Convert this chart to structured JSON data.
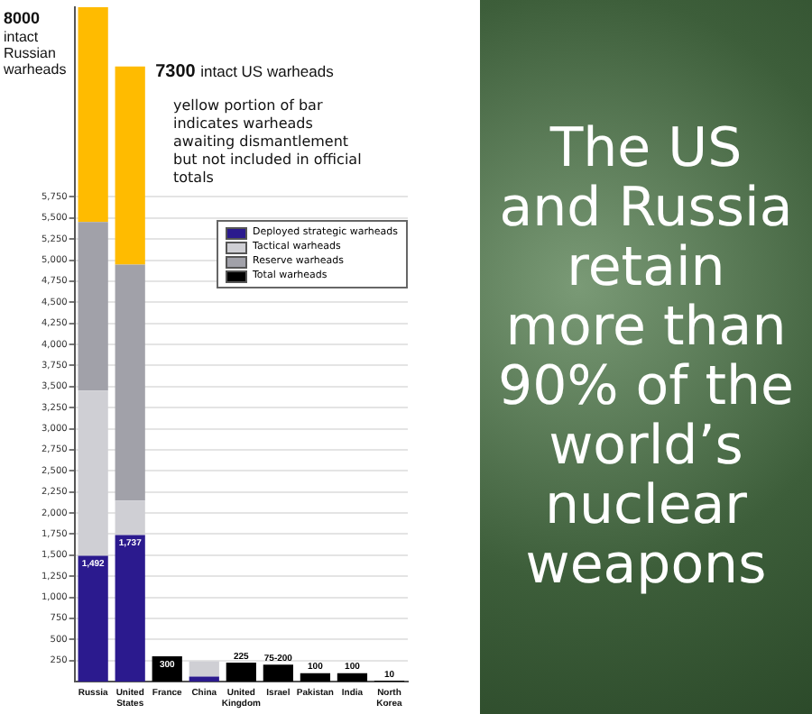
{
  "chart_data": {
    "type": "bar",
    "stacked": true,
    "categories": [
      "Russia",
      "United States",
      "France",
      "China",
      "United Kingdom",
      "Israel",
      "Pakistan",
      "India",
      "North Korea"
    ],
    "series": [
      {
        "name": "Deployed strategic warheads",
        "color": "#2b1a8e",
        "values": [
          1492,
          1737,
          null,
          60,
          null,
          null,
          null,
          null,
          null
        ],
        "value_labels": [
          "1,492",
          "1,737",
          null,
          null,
          null,
          null,
          null,
          null,
          null
        ]
      },
      {
        "name": "Tactical warheads",
        "color": "#cfcfd4",
        "values": [
          1960,
          410,
          null,
          180,
          null,
          null,
          null,
          null,
          null
        ]
      },
      {
        "name": "Reserve warheads",
        "color": "#a1a1a9",
        "values": [
          2000,
          2800,
          null,
          null,
          null,
          null,
          null,
          null,
          null
        ]
      },
      {
        "name": "Total warheads",
        "color": "#000000",
        "values": [
          null,
          null,
          300,
          null,
          225,
          200,
          100,
          100,
          10
        ],
        "value_labels": [
          null,
          null,
          "300",
          null,
          "225",
          "75-200",
          "100",
          "100",
          "10"
        ]
      },
      {
        "color": "#ffbb00",
        "values": [
          2550,
          2350,
          null,
          null,
          null,
          null,
          null,
          null,
          null
        ]
      }
    ],
    "ylim": [
      0,
      8000
    ],
    "yticks": [
      250,
      500,
      750,
      {
        "value": 1000,
        "label": "1,000"
      },
      {
        "value": 1250,
        "label": "1,250"
      },
      {
        "value": 1500,
        "label": "1,500"
      },
      {
        "value": 1750,
        "label": "1,750"
      },
      {
        "value": 2000,
        "label": "2,000"
      },
      {
        "value": 2250,
        "label": "2,250"
      },
      {
        "value": 2500,
        "label": "2,500"
      },
      {
        "value": 2750,
        "label": "2,750"
      },
      {
        "value": 3000,
        "label": "3,000"
      },
      {
        "value": 3250,
        "label": "3,250"
      },
      {
        "value": 3500,
        "label": "3,500"
      },
      {
        "value": 3750,
        "label": "3,750"
      },
      {
        "value": 4000,
        "label": "4,000"
      },
      {
        "value": 4250,
        "label": "4,250"
      },
      {
        "value": 4500,
        "label": "4,500"
      },
      {
        "value": 4750,
        "label": "4,750"
      },
      {
        "value": 5000,
        "label": "5,000"
      },
      {
        "value": 5250,
        "label": "5,250"
      },
      {
        "value": 5500,
        "label": "5,500"
      },
      {
        "value": 5750,
        "label": "5,750"
      }
    ],
    "grid": "y",
    "legend": "right",
    "annotations": [
      {
        "text": "8000 intact Russian warheads",
        "x": "Russia",
        "y": 8000
      },
      {
        "text": "7300 intact US warheads",
        "x": "United States",
        "y": 7300
      },
      "yellow portion of bar indicates warheads awaiting dismantlement but not included in official totals",
      "The US and Russia retain more than 90% of the world’s nuclear weapons"
    ]
  }
}
